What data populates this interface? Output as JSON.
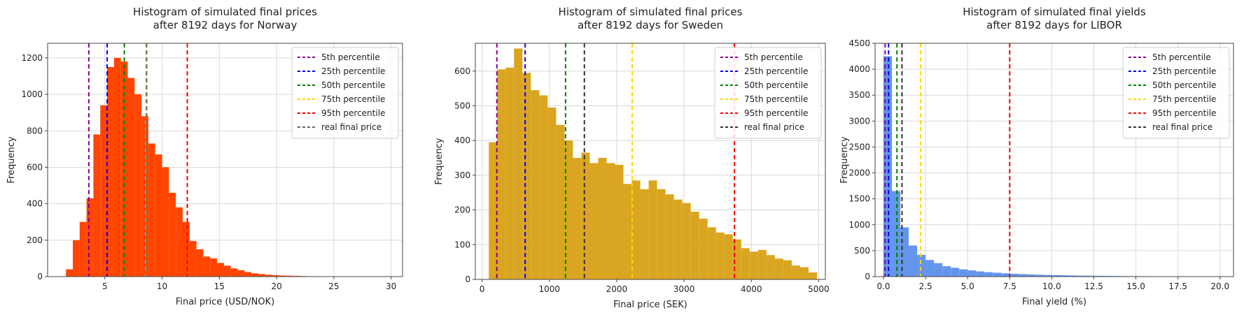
{
  "chart_data": [
    {
      "type": "bar",
      "title": "Histogram of simulated final prices\nafter 8192 days for Norway",
      "xlabel": "Final price (USD/NOK)",
      "ylabel": "Frequency",
      "xlim": [
        0,
        31
      ],
      "ylim": [
        0,
        1280
      ],
      "xticks": [
        5,
        10,
        15,
        20,
        25,
        30
      ],
      "yticks": [
        0,
        200,
        400,
        600,
        800,
        1000,
        1200
      ],
      "grid": true,
      "legend_position": "top-right",
      "bar_color": "#ff4500",
      "bin_width": 0.6,
      "bins": [
        {
          "x": 1.6,
          "y": 40
        },
        {
          "x": 2.2,
          "y": 200
        },
        {
          "x": 2.8,
          "y": 300
        },
        {
          "x": 3.4,
          "y": 430
        },
        {
          "x": 4.0,
          "y": 780
        },
        {
          "x": 4.6,
          "y": 940
        },
        {
          "x": 5.2,
          "y": 1150
        },
        {
          "x": 5.8,
          "y": 1200
        },
        {
          "x": 6.4,
          "y": 1180
        },
        {
          "x": 7.0,
          "y": 1090
        },
        {
          "x": 7.6,
          "y": 1000
        },
        {
          "x": 8.2,
          "y": 880
        },
        {
          "x": 8.8,
          "y": 730
        },
        {
          "x": 9.4,
          "y": 670
        },
        {
          "x": 10.0,
          "y": 600
        },
        {
          "x": 10.6,
          "y": 460
        },
        {
          "x": 11.2,
          "y": 380
        },
        {
          "x": 11.8,
          "y": 300
        },
        {
          "x": 12.4,
          "y": 195
        },
        {
          "x": 13.0,
          "y": 150
        },
        {
          "x": 13.6,
          "y": 110
        },
        {
          "x": 14.2,
          "y": 100
        },
        {
          "x": 14.8,
          "y": 75
        },
        {
          "x": 15.4,
          "y": 60
        },
        {
          "x": 16.0,
          "y": 45
        },
        {
          "x": 16.6,
          "y": 35
        },
        {
          "x": 17.2,
          "y": 25
        },
        {
          "x": 17.8,
          "y": 18
        },
        {
          "x": 18.4,
          "y": 14
        },
        {
          "x": 19.0,
          "y": 10
        },
        {
          "x": 19.6,
          "y": 8
        },
        {
          "x": 20.2,
          "y": 6
        },
        {
          "x": 20.8,
          "y": 5
        },
        {
          "x": 21.4,
          "y": 4
        },
        {
          "x": 22.0,
          "y": 3
        },
        {
          "x": 22.6,
          "y": 2
        },
        {
          "x": 23.2,
          "y": 2
        },
        {
          "x": 23.8,
          "y": 1
        }
      ],
      "lines": [
        {
          "label": "5th percentile",
          "x": 3.6,
          "color": "#8b008b"
        },
        {
          "label": "25th percentile",
          "x": 5.2,
          "color": "#0000ff"
        },
        {
          "label": "50th percentile",
          "x": 6.7,
          "color": "#008000"
        },
        {
          "label": "75th percentile",
          "x": 8.6,
          "color": "#ffd700"
        },
        {
          "label": "95th percentile",
          "x": 12.2,
          "color": "#ff0000"
        },
        {
          "label": "real final price",
          "x": 8.65,
          "color": "#666666"
        }
      ]
    },
    {
      "type": "bar",
      "title": "Histogram of simulated final prices\nafter 8192 days for Sweden",
      "xlabel": "Final price (SEK)",
      "ylabel": "Frequency",
      "xlim": [
        -100,
        5100
      ],
      "ylim": [
        0,
        680
      ],
      "xticks": [
        0,
        1000,
        2000,
        3000,
        4000,
        5000
      ],
      "yticks": [
        0,
        100,
        200,
        300,
        400,
        500,
        600
      ],
      "grid": true,
      "legend_position": "top-right",
      "bar_color": "#daa520",
      "bin_width": 125,
      "bins": [
        {
          "x": 100,
          "y": 395
        },
        {
          "x": 225,
          "y": 605
        },
        {
          "x": 350,
          "y": 610
        },
        {
          "x": 475,
          "y": 665
        },
        {
          "x": 600,
          "y": 595
        },
        {
          "x": 725,
          "y": 545
        },
        {
          "x": 850,
          "y": 530
        },
        {
          "x": 975,
          "y": 495
        },
        {
          "x": 1100,
          "y": 445
        },
        {
          "x": 1225,
          "y": 400
        },
        {
          "x": 1350,
          "y": 350
        },
        {
          "x": 1475,
          "y": 365
        },
        {
          "x": 1600,
          "y": 335
        },
        {
          "x": 1725,
          "y": 350
        },
        {
          "x": 1850,
          "y": 335
        },
        {
          "x": 1975,
          "y": 330
        },
        {
          "x": 2100,
          "y": 275
        },
        {
          "x": 2225,
          "y": 285
        },
        {
          "x": 2350,
          "y": 260
        },
        {
          "x": 2475,
          "y": 285
        },
        {
          "x": 2600,
          "y": 260
        },
        {
          "x": 2725,
          "y": 245
        },
        {
          "x": 2850,
          "y": 230
        },
        {
          "x": 2975,
          "y": 220
        },
        {
          "x": 3100,
          "y": 195
        },
        {
          "x": 3225,
          "y": 175
        },
        {
          "x": 3350,
          "y": 150
        },
        {
          "x": 3475,
          "y": 135
        },
        {
          "x": 3600,
          "y": 130
        },
        {
          "x": 3725,
          "y": 115
        },
        {
          "x": 3850,
          "y": 90
        },
        {
          "x": 3975,
          "y": 80
        },
        {
          "x": 4100,
          "y": 85
        },
        {
          "x": 4225,
          "y": 70
        },
        {
          "x": 4350,
          "y": 60
        },
        {
          "x": 4475,
          "y": 55
        },
        {
          "x": 4600,
          "y": 40
        },
        {
          "x": 4725,
          "y": 35
        },
        {
          "x": 4850,
          "y": 20
        }
      ],
      "lines": [
        {
          "label": "5th percentile",
          "x": 220,
          "color": "#8b008b"
        },
        {
          "label": "25th percentile",
          "x": 640,
          "color": "#0000ff"
        },
        {
          "label": "50th percentile",
          "x": 1240,
          "color": "#008000"
        },
        {
          "label": "75th percentile",
          "x": 2230,
          "color": "#ffd700"
        },
        {
          "label": "95th percentile",
          "x": 3750,
          "color": "#ff0000"
        },
        {
          "label": "real final price",
          "x": 1520,
          "color": "#333333"
        }
      ]
    },
    {
      "type": "bar",
      "title": "Histogram of simulated final yields\nafter 8192 days for LIBOR",
      "xlabel": "Final yield (%)",
      "ylabel": "Frequency",
      "xlim": [
        -0.5,
        20.8
      ],
      "ylim": [
        0,
        4500
      ],
      "xticks": [
        0.0,
        2.5,
        5.0,
        7.5,
        10.0,
        12.5,
        15.0,
        17.5,
        20.0
      ],
      "xtick_labels": [
        "0.0",
        "2.5",
        "5.0",
        "7.5",
        "10.0",
        "12.5",
        "15.0",
        "17.5",
        "20.0"
      ],
      "yticks": [
        0,
        500,
        1000,
        1500,
        2000,
        2500,
        3000,
        3500,
        4000,
        4500
      ],
      "grid": true,
      "legend_position": "top-right",
      "bar_color": "#6495ed",
      "bin_width": 0.5,
      "bins": [
        {
          "x": 0.0,
          "y": 4250
        },
        {
          "x": 0.5,
          "y": 1650
        },
        {
          "x": 1.0,
          "y": 950
        },
        {
          "x": 1.5,
          "y": 600
        },
        {
          "x": 2.0,
          "y": 420
        },
        {
          "x": 2.5,
          "y": 320
        },
        {
          "x": 3.0,
          "y": 260
        },
        {
          "x": 3.5,
          "y": 200
        },
        {
          "x": 4.0,
          "y": 170
        },
        {
          "x": 4.5,
          "y": 140
        },
        {
          "x": 5.0,
          "y": 120
        },
        {
          "x": 5.5,
          "y": 100
        },
        {
          "x": 6.0,
          "y": 85
        },
        {
          "x": 6.5,
          "y": 75
        },
        {
          "x": 7.0,
          "y": 65
        },
        {
          "x": 7.5,
          "y": 55
        },
        {
          "x": 8.0,
          "y": 48
        },
        {
          "x": 8.5,
          "y": 42
        },
        {
          "x": 9.0,
          "y": 36
        },
        {
          "x": 9.5,
          "y": 32
        },
        {
          "x": 10.0,
          "y": 28
        },
        {
          "x": 10.5,
          "y": 25
        },
        {
          "x": 11.0,
          "y": 22
        },
        {
          "x": 11.5,
          "y": 19
        },
        {
          "x": 12.0,
          "y": 17
        },
        {
          "x": 12.5,
          "y": 15
        },
        {
          "x": 13.0,
          "y": 13
        },
        {
          "x": 13.5,
          "y": 12
        },
        {
          "x": 14.0,
          "y": 10
        },
        {
          "x": 14.5,
          "y": 9
        },
        {
          "x": 15.0,
          "y": 8
        },
        {
          "x": 15.5,
          "y": 7
        },
        {
          "x": 16.0,
          "y": 6
        },
        {
          "x": 16.5,
          "y": 5
        },
        {
          "x": 17.0,
          "y": 5
        },
        {
          "x": 17.5,
          "y": 4
        },
        {
          "x": 18.0,
          "y": 3
        },
        {
          "x": 18.5,
          "y": 2
        }
      ],
      "lines": [
        {
          "label": "5th percentile",
          "x": 0.1,
          "color": "#8b008b"
        },
        {
          "label": "25th percentile",
          "x": 0.3,
          "color": "#0000ff"
        },
        {
          "label": "50th percentile",
          "x": 0.8,
          "color": "#008000"
        },
        {
          "label": "75th percentile",
          "x": 2.2,
          "color": "#ffd700"
        },
        {
          "label": "95th percentile",
          "x": 7.5,
          "color": "#ff0000"
        },
        {
          "label": "real final price",
          "x": 1.1,
          "color": "#333333"
        }
      ]
    }
  ]
}
